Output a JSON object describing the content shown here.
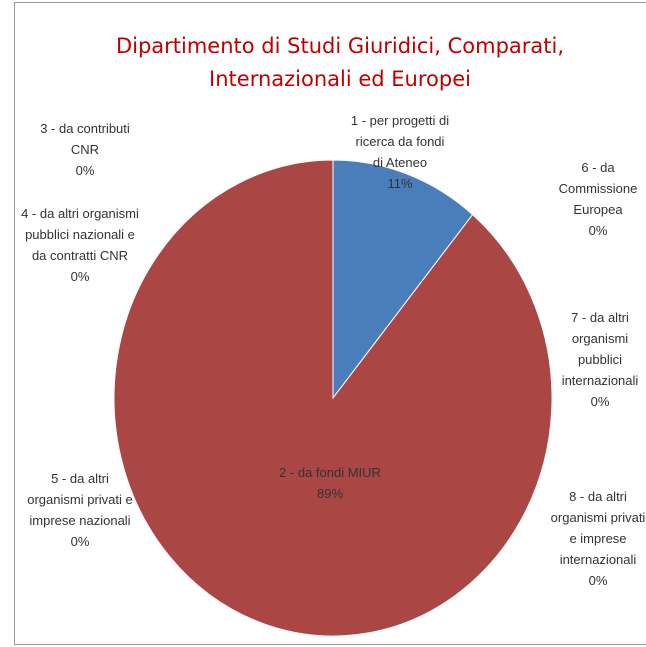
{
  "chart_data": {
    "type": "pie",
    "title": "Dipartimento di Studi Giuridici, Comparati, Internazionali ed Europei",
    "categories": [
      "1 - per progetti di ricerca da fondi di Ateneo",
      "2 - da fondi MIUR",
      "3 - da contributi CNR",
      "4 - da altri organismi pubblici nazionali e da contratti CNR",
      "5 - da altri organismi privati e imprese nazionali",
      "6 - da Commissione Europea",
      "7 - da altri organismi pubblici internazionali",
      "8 - da altri organismi privati e imprese internazionali"
    ],
    "values": [
      11,
      89,
      0,
      0,
      0,
      0,
      0,
      0
    ],
    "value_labels": [
      "11%",
      "89%",
      "0%",
      "0%",
      "0%",
      "0%",
      "0%",
      "0%"
    ],
    "colors": [
      "#4a7ebb",
      "#aa4643",
      "#89a54e",
      "#71588f",
      "#4198af",
      "#db843d",
      "#93a9cf",
      "#d19392"
    ]
  }
}
